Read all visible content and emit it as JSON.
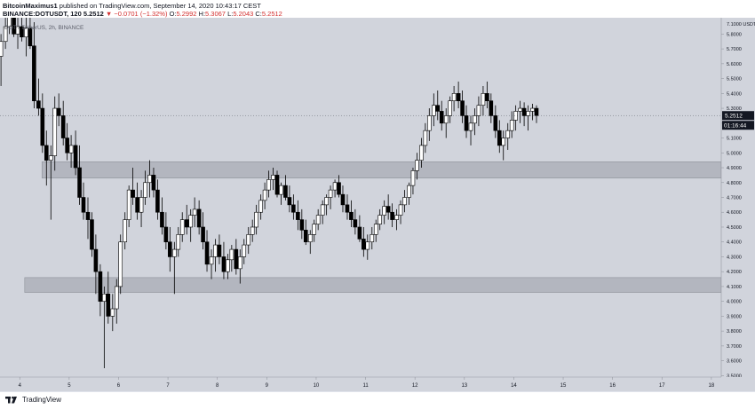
{
  "header": {
    "author": "BitcoinMaximus1",
    "published": "published on TradingView.com, September 14, 2020 10:43:17 CEST",
    "symbol_line": "BINANCE:DOTUSDT, 120",
    "open_value": "5.2512",
    "change_text": "▼ −0.0701 (−1.32%)",
    "open_label": "O:",
    "open": "5.2992",
    "high_label": "H:",
    "high": "5.3067",
    "low_label": "L:",
    "low": "5.2043",
    "close_label": "C:",
    "close": "5.2512"
  },
  "chart_overlay_title": "DOT / TetherUS, 2h, BINANCE",
  "price_badges": {
    "price": "5.2512",
    "countdown": "01:16:44"
  },
  "footer": {
    "logo_text": "TradingView"
  },
  "colors": {
    "background": "#d1d4dc",
    "up_candle": "#ffffff",
    "down_candle": "#000000",
    "zone": "#a8acb5",
    "axis_text": "#131722"
  },
  "chart_data": {
    "type": "candlestick",
    "title": "DOT / TetherUS, 2h, BINANCE",
    "y_axis": {
      "ylim": [
        3.5,
        7.1
      ],
      "unit": "USDT",
      "ticks": [
        "7.1000",
        "5.8000",
        "5.7000",
        "5.6000",
        "5.5000",
        "5.4000",
        "5.3000",
        "5.2000",
        "5.1000",
        "5.0000",
        "4.9000",
        "4.8000",
        "4.7000",
        "4.6000",
        "4.5000",
        "4.4000",
        "4.3000",
        "4.2000",
        "4.1000",
        "4.0000",
        "3.9000",
        "3.8000",
        "3.7000",
        "3.6000",
        "3.5000"
      ],
      "top_label": "7.1000",
      "top_label_unit": "USDT"
    },
    "x_axis": {
      "ticks": [
        "4",
        "5",
        "6",
        "7",
        "8",
        "9",
        "10",
        "11",
        "12",
        "13",
        "14",
        "15",
        "16",
        "17",
        "18"
      ],
      "xlim": [
        3.6,
        18.2
      ]
    },
    "zones": [
      {
        "name": "resistance-support-zone",
        "y0": 4.83,
        "y1": 4.94,
        "x0": 4.45,
        "x1": 18.2
      },
      {
        "name": "support-zone",
        "y0": 4.06,
        "y1": 4.16,
        "x0": 4.1,
        "x1": 18.2
      }
    ],
    "last_price": 5.2512,
    "candles": [
      [
        3.62,
        5.65,
        5.8,
        5.45,
        5.75
      ],
      [
        3.71,
        5.75,
        5.95,
        5.7,
        5.85
      ],
      [
        3.79,
        5.85,
        5.98,
        5.8,
        5.92
      ],
      [
        3.88,
        5.92,
        5.98,
        5.78,
        5.8
      ],
      [
        3.96,
        5.8,
        5.92,
        5.7,
        5.85
      ],
      [
        4.04,
        5.85,
        5.96,
        5.75,
        5.78
      ],
      [
        4.13,
        5.78,
        5.92,
        5.65,
        5.84
      ],
      [
        4.21,
        5.84,
        5.95,
        5.7,
        5.72
      ],
      [
        4.29,
        5.72,
        5.88,
        5.3,
        5.35
      ],
      [
        4.38,
        5.35,
        5.5,
        5.25,
        5.3
      ],
      [
        4.46,
        5.3,
        5.4,
        5.0,
        5.05
      ],
      [
        4.54,
        5.05,
        5.15,
        4.78,
        4.95
      ],
      [
        4.63,
        4.95,
        5.05,
        4.55,
        4.98
      ],
      [
        4.71,
        4.98,
        5.38,
        4.88,
        5.3
      ],
      [
        4.79,
        5.3,
        5.4,
        5.18,
        5.25
      ],
      [
        4.88,
        5.25,
        5.35,
        5.05,
        5.1
      ],
      [
        4.96,
        5.1,
        5.2,
        4.95,
        5.0
      ],
      [
        5.04,
        5.0,
        5.12,
        4.9,
        5.05
      ],
      [
        5.13,
        5.05,
        5.15,
        4.85,
        4.9
      ],
      [
        5.21,
        4.9,
        5.05,
        4.65,
        4.7
      ],
      [
        5.29,
        4.7,
        4.8,
        4.55,
        4.6
      ],
      [
        5.38,
        4.6,
        4.7,
        4.42,
        4.55
      ],
      [
        5.46,
        4.55,
        4.6,
        4.3,
        4.35
      ],
      [
        5.54,
        4.35,
        4.45,
        4.05,
        4.2
      ],
      [
        5.63,
        4.2,
        4.25,
        3.9,
        4.0
      ],
      [
        5.71,
        4.0,
        4.1,
        3.55,
        4.05
      ],
      [
        5.79,
        4.05,
        4.2,
        3.85,
        3.9
      ],
      [
        5.88,
        3.9,
        4.05,
        3.8,
        3.95
      ],
      [
        5.96,
        3.95,
        4.15,
        3.85,
        4.1
      ],
      [
        6.04,
        4.1,
        4.45,
        4.05,
        4.4
      ],
      [
        6.13,
        4.4,
        4.6,
        4.35,
        4.55
      ],
      [
        6.21,
        4.55,
        4.78,
        4.5,
        4.75
      ],
      [
        6.29,
        4.75,
        4.9,
        4.65,
        4.7
      ],
      [
        6.38,
        4.7,
        4.8,
        4.55,
        4.6
      ],
      [
        6.46,
        4.6,
        4.75,
        4.5,
        4.7
      ],
      [
        6.54,
        4.7,
        4.88,
        4.65,
        4.8
      ],
      [
        6.63,
        4.8,
        4.95,
        4.7,
        4.85
      ],
      [
        6.71,
        4.85,
        4.9,
        4.7,
        4.75
      ],
      [
        6.79,
        4.75,
        4.82,
        4.55,
        4.6
      ],
      [
        6.88,
        4.6,
        4.7,
        4.45,
        4.5
      ],
      [
        6.96,
        4.5,
        4.6,
        4.35,
        4.4
      ],
      [
        7.04,
        4.4,
        4.5,
        4.2,
        4.3
      ],
      [
        7.13,
        4.3,
        4.4,
        4.05,
        4.35
      ],
      [
        7.21,
        4.35,
        4.5,
        4.3,
        4.45
      ],
      [
        7.29,
        4.45,
        4.6,
        4.4,
        4.55
      ],
      [
        7.38,
        4.55,
        4.65,
        4.45,
        4.5
      ],
      [
        7.46,
        4.5,
        4.62,
        4.4,
        4.58
      ],
      [
        7.54,
        4.58,
        4.7,
        4.5,
        4.62
      ],
      [
        7.63,
        4.62,
        4.68,
        4.45,
        4.5
      ],
      [
        7.71,
        4.5,
        4.6,
        4.35,
        4.4
      ],
      [
        7.79,
        4.4,
        4.48,
        4.2,
        4.25
      ],
      [
        7.88,
        4.25,
        4.35,
        4.15,
        4.3
      ],
      [
        7.96,
        4.3,
        4.42,
        4.2,
        4.38
      ],
      [
        8.04,
        4.38,
        4.45,
        4.25,
        4.3
      ],
      [
        8.13,
        4.3,
        4.4,
        4.15,
        4.2
      ],
      [
        8.21,
        4.2,
        4.32,
        4.15,
        4.28
      ],
      [
        8.29,
        4.28,
        4.38,
        4.2,
        4.35
      ],
      [
        8.38,
        4.35,
        4.42,
        4.18,
        4.22
      ],
      [
        8.46,
        4.22,
        4.35,
        4.12,
        4.3
      ],
      [
        8.54,
        4.3,
        4.42,
        4.25,
        4.38
      ],
      [
        8.63,
        4.38,
        4.5,
        4.32,
        4.45
      ],
      [
        8.71,
        4.45,
        4.55,
        4.4,
        4.5
      ],
      [
        8.79,
        4.5,
        4.65,
        4.45,
        4.6
      ],
      [
        8.88,
        4.6,
        4.72,
        4.55,
        4.68
      ],
      [
        8.96,
        4.68,
        4.8,
        4.62,
        4.75
      ],
      [
        9.04,
        4.75,
        4.88,
        4.7,
        4.82
      ],
      [
        9.13,
        4.82,
        4.9,
        4.75,
        4.85
      ],
      [
        9.21,
        4.85,
        4.88,
        4.7,
        4.72
      ],
      [
        9.29,
        4.72,
        4.8,
        4.65,
        4.78
      ],
      [
        9.38,
        4.78,
        4.85,
        4.68,
        4.7
      ],
      [
        9.46,
        4.7,
        4.78,
        4.6,
        4.65
      ],
      [
        9.54,
        4.65,
        4.72,
        4.55,
        4.6
      ],
      [
        9.63,
        4.6,
        4.68,
        4.48,
        4.55
      ],
      [
        9.71,
        4.55,
        4.62,
        4.42,
        4.48
      ],
      [
        9.79,
        4.48,
        4.55,
        4.38,
        4.4
      ],
      [
        9.88,
        4.4,
        4.48,
        4.32,
        4.45
      ],
      [
        9.96,
        4.45,
        4.55,
        4.4,
        4.52
      ],
      [
        10.04,
        4.52,
        4.62,
        4.48,
        4.58
      ],
      [
        10.13,
        4.58,
        4.68,
        4.52,
        4.65
      ],
      [
        10.21,
        4.65,
        4.72,
        4.58,
        4.7
      ],
      [
        10.29,
        4.7,
        4.78,
        4.62,
        4.75
      ],
      [
        10.38,
        4.75,
        4.82,
        4.7,
        4.8
      ],
      [
        10.46,
        4.8,
        4.85,
        4.7,
        4.72
      ],
      [
        10.54,
        4.72,
        4.78,
        4.6,
        4.65
      ],
      [
        10.63,
        4.65,
        4.72,
        4.55,
        4.6
      ],
      [
        10.71,
        4.6,
        4.68,
        4.5,
        4.55
      ],
      [
        10.79,
        4.55,
        4.62,
        4.45,
        4.5
      ],
      [
        10.88,
        4.5,
        4.58,
        4.4,
        4.42
      ],
      [
        10.96,
        4.42,
        4.5,
        4.3,
        4.35
      ],
      [
        11.04,
        4.35,
        4.45,
        4.28,
        4.4
      ],
      [
        11.13,
        4.4,
        4.5,
        4.35,
        4.45
      ],
      [
        11.21,
        4.45,
        4.55,
        4.4,
        4.52
      ],
      [
        11.29,
        4.52,
        4.62,
        4.48,
        4.58
      ],
      [
        11.38,
        4.58,
        4.68,
        4.52,
        4.64
      ],
      [
        11.46,
        4.64,
        4.72,
        4.55,
        4.6
      ],
      [
        11.54,
        4.6,
        4.66,
        4.5,
        4.55
      ],
      [
        11.63,
        4.55,
        4.62,
        4.48,
        4.58
      ],
      [
        11.71,
        4.58,
        4.68,
        4.52,
        4.65
      ],
      [
        11.79,
        4.65,
        4.75,
        4.6,
        4.7
      ],
      [
        11.88,
        4.7,
        4.8,
        4.65,
        4.78
      ],
      [
        11.96,
        4.78,
        4.9,
        4.72,
        4.88
      ],
      [
        12.04,
        4.88,
        5.0,
        4.82,
        4.95
      ],
      [
        12.13,
        4.95,
        5.1,
        4.9,
        5.05
      ],
      [
        12.21,
        5.05,
        5.2,
        5.0,
        5.15
      ],
      [
        12.29,
        5.15,
        5.3,
        5.08,
        5.25
      ],
      [
        12.38,
        5.25,
        5.4,
        5.18,
        5.32
      ],
      [
        12.46,
        5.32,
        5.42,
        5.22,
        5.28
      ],
      [
        12.54,
        5.28,
        5.35,
        5.15,
        5.2
      ],
      [
        12.63,
        5.2,
        5.3,
        5.1,
        5.25
      ],
      [
        12.71,
        5.25,
        5.38,
        5.2,
        5.35
      ],
      [
        12.79,
        5.35,
        5.45,
        5.28,
        5.4
      ],
      [
        12.88,
        5.4,
        5.48,
        5.3,
        5.35
      ],
      [
        12.96,
        5.35,
        5.42,
        5.2,
        5.25
      ],
      [
        13.04,
        5.25,
        5.32,
        5.1,
        5.15
      ],
      [
        13.13,
        5.15,
        5.25,
        5.05,
        5.2
      ],
      [
        13.21,
        5.2,
        5.3,
        5.12,
        5.25
      ],
      [
        13.29,
        5.25,
        5.38,
        5.18,
        5.32
      ],
      [
        13.38,
        5.32,
        5.45,
        5.25,
        5.4
      ],
      [
        13.46,
        5.4,
        5.48,
        5.3,
        5.35
      ],
      [
        13.54,
        5.35,
        5.4,
        5.2,
        5.25
      ],
      [
        13.63,
        5.25,
        5.32,
        5.1,
        5.15
      ],
      [
        13.71,
        5.15,
        5.22,
        5.0,
        5.05
      ],
      [
        13.79,
        5.05,
        5.15,
        4.95,
        5.1
      ],
      [
        13.88,
        5.1,
        5.2,
        5.02,
        5.15
      ],
      [
        13.96,
        5.15,
        5.28,
        5.1,
        5.22
      ],
      [
        14.04,
        5.22,
        5.32,
        5.15,
        5.28
      ],
      [
        14.13,
        5.28,
        5.35,
        5.2,
        5.3
      ],
      [
        14.21,
        5.3,
        5.34,
        5.18,
        5.25
      ],
      [
        14.29,
        5.25,
        5.32,
        5.15,
        5.28
      ],
      [
        14.38,
        5.28,
        5.33,
        5.22,
        5.3
      ],
      [
        14.46,
        5.3,
        5.32,
        5.2,
        5.2512
      ]
    ]
  }
}
